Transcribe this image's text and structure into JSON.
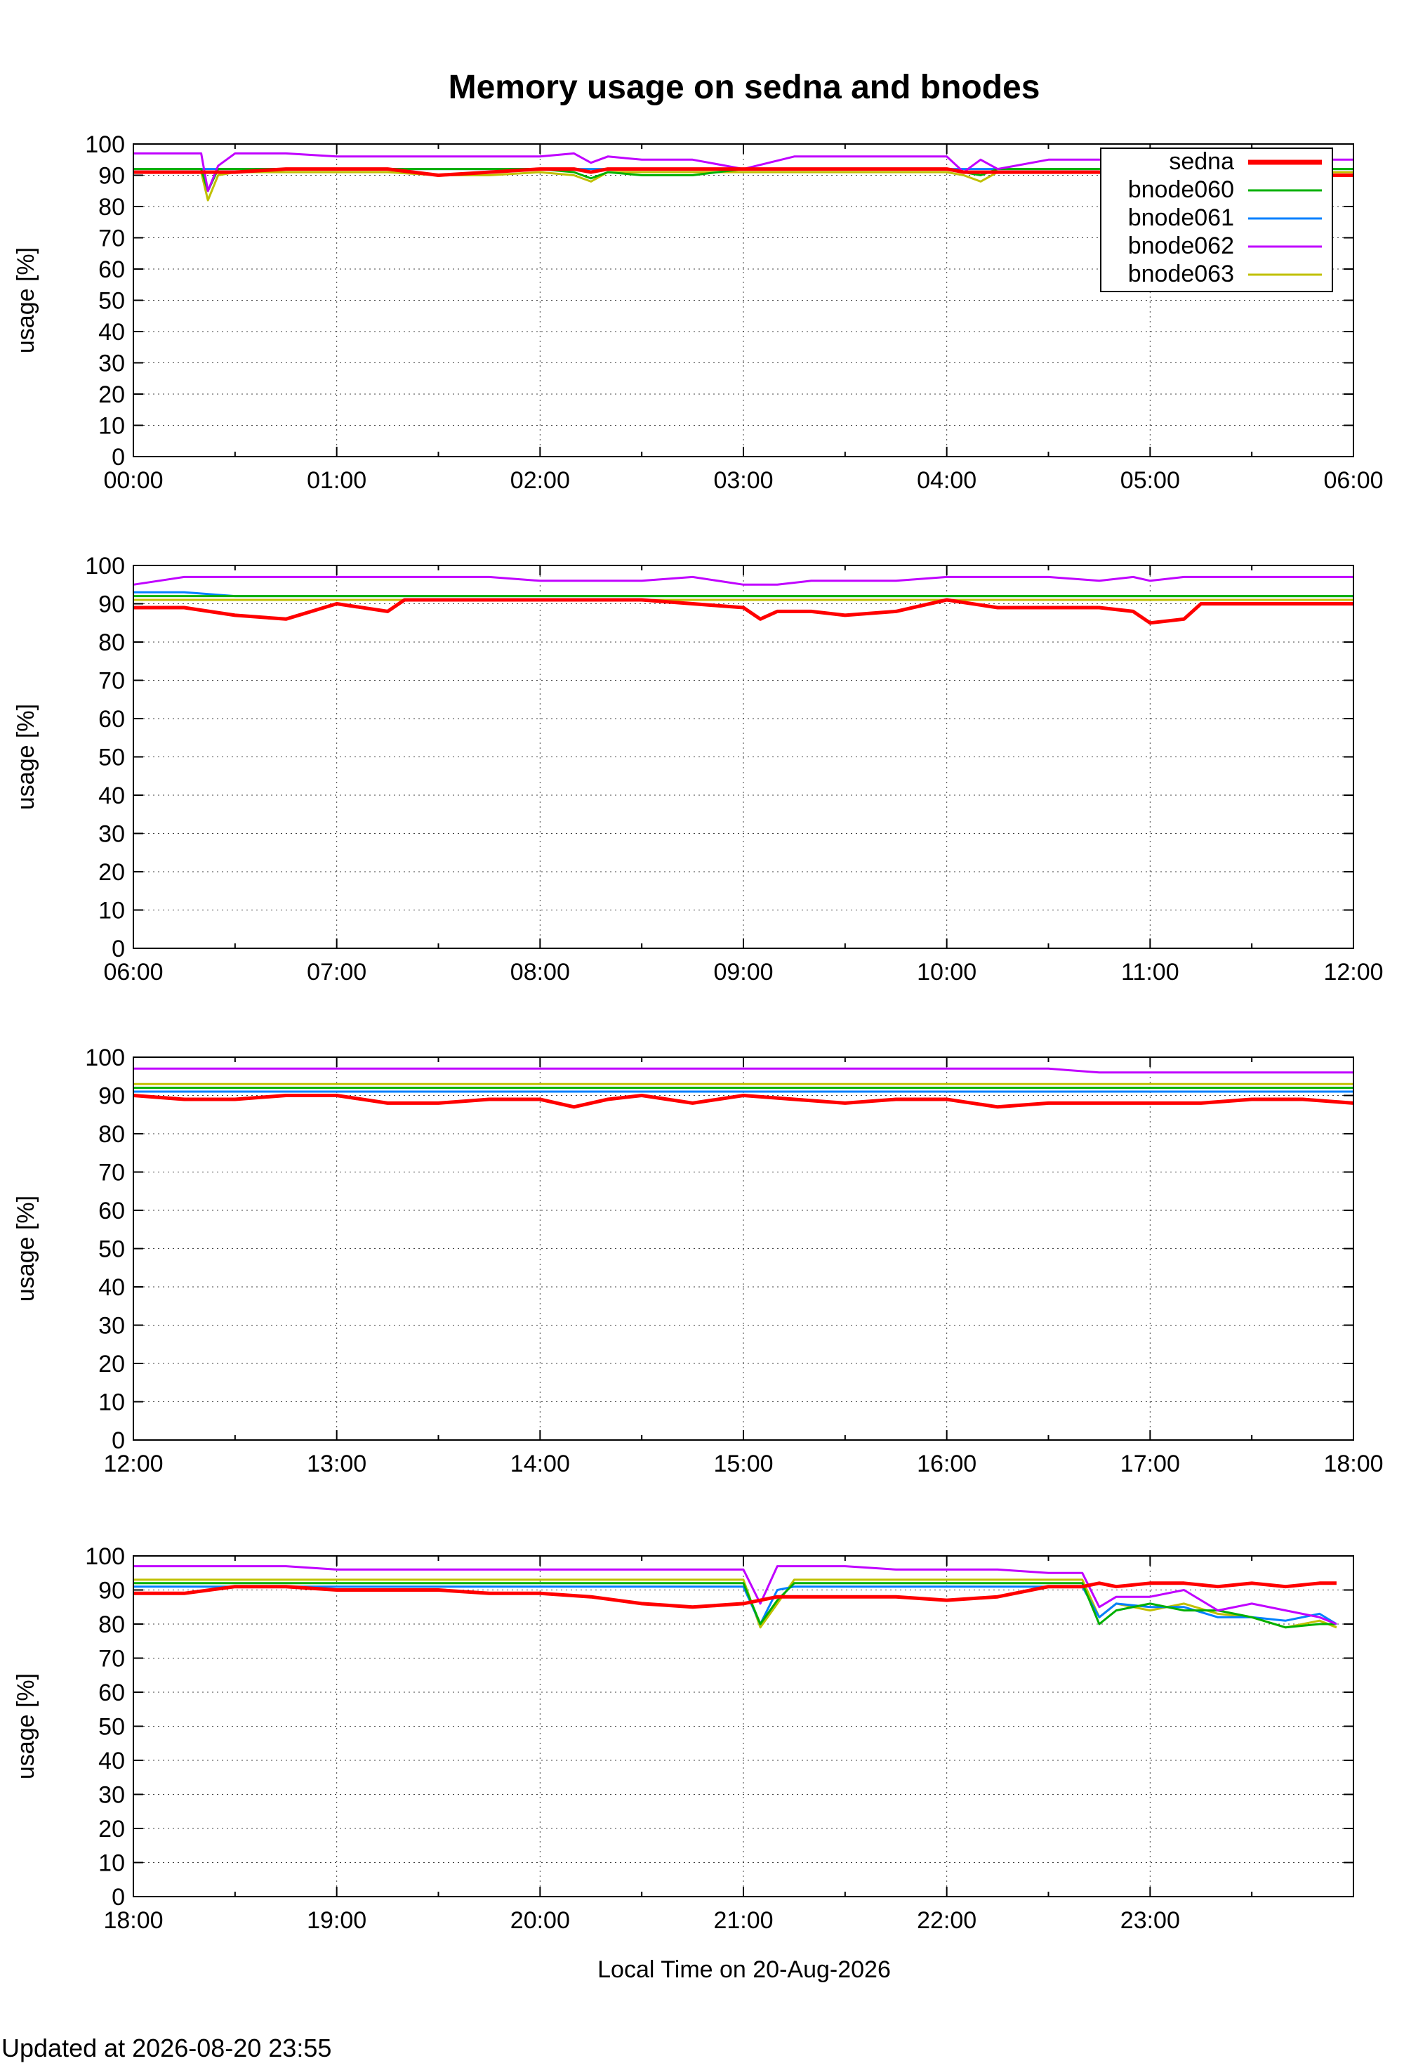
{
  "footer": {
    "updated": "Updated at 2026-08-20 23:55"
  },
  "chart_data": {
    "type": "line",
    "title": "Memory usage on sedna and bnodes",
    "xlabel": "Local Time on 20-Aug-2026",
    "ylabel": "usage [%]",
    "ylim": [
      0,
      100
    ],
    "yticks": [
      0,
      10,
      20,
      30,
      40,
      50,
      60,
      70,
      80,
      90,
      100
    ],
    "grid": true,
    "legend_position": "top-right",
    "series_styles": [
      {
        "name": "sedna",
        "color": "#ff0000"
      },
      {
        "name": "bnode060",
        "color": "#00b000"
      },
      {
        "name": "bnode061",
        "color": "#0080ff"
      },
      {
        "name": "bnode062",
        "color": "#c000ff"
      },
      {
        "name": "bnode063",
        "color": "#c0c000"
      }
    ],
    "panels": [
      {
        "xticks": [
          "00:00",
          "01:00",
          "02:00",
          "03:00",
          "04:00",
          "05:00",
          "06:00"
        ],
        "x": [
          "00:00",
          "00:15",
          "00:20",
          "00:22",
          "00:25",
          "00:30",
          "00:45",
          "01:00",
          "01:15",
          "01:30",
          "01:45",
          "02:00",
          "02:10",
          "02:15",
          "02:20",
          "02:30",
          "02:45",
          "03:00",
          "03:15",
          "03:30",
          "03:45",
          "04:00",
          "04:05",
          "04:10",
          "04:15",
          "04:30",
          "04:45",
          "05:00",
          "05:15",
          "05:30",
          "05:45",
          "06:00"
        ],
        "series": [
          {
            "name": "sedna",
            "values": [
              91,
              91,
              91,
              91,
              91,
              91,
              92,
              92,
              92,
              90,
              91,
              92,
              92,
              91,
              92,
              92,
              92,
              92,
              92,
              92,
              92,
              92,
              91,
              91,
              91,
              91,
              91,
              90,
              90,
              90,
              90,
              90
            ]
          },
          {
            "name": "bnode060",
            "values": [
              92,
              92,
              92,
              85,
              92,
              92,
              92,
              92,
              92,
              92,
              92,
              92,
              91,
              89,
              91,
              90,
              90,
              92,
              92,
              92,
              92,
              92,
              91,
              90,
              92,
              92,
              92,
              92,
              92,
              92,
              92,
              92
            ]
          },
          {
            "name": "bnode061",
            "values": [
              92,
              92,
              92,
              92,
              92,
              92,
              92,
              92,
              92,
              92,
              92,
              92,
              92,
              92,
              92,
              92,
              92,
              92,
              92,
              92,
              92,
              92,
              92,
              92,
              92,
              92,
              92,
              92,
              92,
              92,
              92,
              92
            ]
          },
          {
            "name": "bnode062",
            "values": [
              97,
              97,
              97,
              85,
              93,
              97,
              97,
              96,
              96,
              96,
              96,
              96,
              97,
              94,
              96,
              95,
              95,
              92,
              96,
              96,
              96,
              96,
              91,
              95,
              92,
              95,
              95,
              95,
              95,
              95,
              95,
              95
            ]
          },
          {
            "name": "bnode063",
            "values": [
              91,
              91,
              91,
              82,
              90,
              91,
              91,
              91,
              91,
              90,
              90,
              91,
              90,
              88,
              91,
              91,
              91,
              91,
              91,
              91,
              91,
              91,
              90,
              88,
              91,
              91,
              91,
              91,
              91,
              91,
              91,
              91
            ]
          }
        ]
      },
      {
        "xticks": [
          "06:00",
          "07:00",
          "08:00",
          "09:00",
          "10:00",
          "11:00",
          "12:00"
        ],
        "x": [
          "06:00",
          "06:15",
          "06:30",
          "06:45",
          "07:00",
          "07:15",
          "07:20",
          "07:45",
          "08:00",
          "08:30",
          "08:45",
          "09:00",
          "09:05",
          "09:10",
          "09:20",
          "09:30",
          "09:45",
          "10:00",
          "10:15",
          "10:30",
          "10:45",
          "10:55",
          "11:00",
          "11:10",
          "11:15",
          "11:30",
          "11:45",
          "12:00"
        ],
        "series": [
          {
            "name": "sedna",
            "values": [
              89,
              89,
              87,
              86,
              90,
              88,
              91,
              91,
              91,
              91,
              90,
              89,
              86,
              88,
              88,
              87,
              88,
              91,
              89,
              89,
              89,
              88,
              85,
              86,
              90,
              90,
              90,
              90
            ]
          },
          {
            "name": "bnode060",
            "values": [
              92,
              92,
              92,
              92,
              92,
              92,
              92,
              92,
              92,
              92,
              92,
              92,
              92,
              92,
              92,
              92,
              92,
              92,
              92,
              92,
              92,
              92,
              92,
              92,
              92,
              92,
              92,
              92
            ]
          },
          {
            "name": "bnode061",
            "values": [
              93,
              93,
              92,
              92,
              92,
              92,
              92,
              92,
              92,
              92,
              92,
              92,
              92,
              92,
              92,
              92,
              92,
              92,
              92,
              92,
              92,
              92,
              92,
              92,
              92,
              92,
              92,
              92
            ]
          },
          {
            "name": "bnode062",
            "values": [
              95,
              97,
              97,
              97,
              97,
              97,
              97,
              97,
              96,
              96,
              97,
              95,
              95,
              95,
              96,
              96,
              96,
              97,
              97,
              97,
              96,
              97,
              96,
              97,
              97,
              97,
              97,
              97
            ]
          },
          {
            "name": "bnode063",
            "values": [
              91,
              91,
              91,
              91,
              91,
              91,
              91,
              91,
              91,
              91,
              91,
              91,
              91,
              91,
              91,
              91,
              91,
              91,
              91,
              91,
              91,
              91,
              91,
              91,
              91,
              91,
              91,
              91
            ]
          }
        ]
      },
      {
        "xticks": [
          "12:00",
          "13:00",
          "14:00",
          "15:00",
          "16:00",
          "17:00",
          "18:00"
        ],
        "x": [
          "12:00",
          "12:15",
          "12:30",
          "12:45",
          "13:00",
          "13:15",
          "13:30",
          "13:45",
          "14:00",
          "14:10",
          "14:20",
          "14:30",
          "14:45",
          "15:00",
          "15:15",
          "15:30",
          "15:45",
          "16:00",
          "16:15",
          "16:30",
          "16:45",
          "17:00",
          "17:15",
          "17:30",
          "17:45",
          "18:00"
        ],
        "series": [
          {
            "name": "sedna",
            "values": [
              90,
              89,
              89,
              90,
              90,
              88,
              88,
              89,
              89,
              87,
              89,
              90,
              88,
              90,
              89,
              88,
              89,
              89,
              87,
              88,
              88,
              88,
              88,
              89,
              89,
              88
            ]
          },
          {
            "name": "bnode060",
            "values": [
              92,
              92,
              92,
              92,
              92,
              92,
              92,
              92,
              92,
              92,
              92,
              92,
              92,
              92,
              92,
              92,
              92,
              92,
              92,
              92,
              92,
              92,
              92,
              92,
              92,
              92
            ]
          },
          {
            "name": "bnode061",
            "values": [
              91,
              91,
              91,
              91,
              91,
              91,
              91,
              91,
              91,
              91,
              91,
              91,
              91,
              91,
              91,
              91,
              91,
              91,
              91,
              91,
              91,
              91,
              91,
              91,
              91,
              91
            ]
          },
          {
            "name": "bnode062",
            "values": [
              97,
              97,
              97,
              97,
              97,
              97,
              97,
              97,
              97,
              97,
              97,
              97,
              97,
              97,
              97,
              97,
              97,
              97,
              97,
              97,
              96,
              96,
              96,
              96,
              96,
              96
            ]
          },
          {
            "name": "bnode063",
            "values": [
              93,
              93,
              93,
              93,
              93,
              93,
              93,
              93,
              93,
              93,
              93,
              93,
              93,
              93,
              93,
              93,
              93,
              93,
              93,
              93,
              93,
              93,
              93,
              93,
              93,
              93
            ]
          }
        ]
      },
      {
        "xticks": [
          "18:00",
          "19:00",
          "20:00",
          "21:00",
          "22:00",
          "23:00"
        ],
        "x": [
          "18:00",
          "18:15",
          "18:30",
          "18:45",
          "19:00",
          "19:15",
          "19:30",
          "19:45",
          "20:00",
          "20:15",
          "20:30",
          "20:45",
          "21:00",
          "21:05",
          "21:10",
          "21:15",
          "21:30",
          "21:45",
          "22:00",
          "22:15",
          "22:30",
          "22:40",
          "22:45",
          "22:50",
          "23:00",
          "23:10",
          "23:20",
          "23:30",
          "23:40",
          "23:50",
          "23:55"
        ],
        "series": [
          {
            "name": "sedna",
            "values": [
              89,
              89,
              91,
              91,
              90,
              90,
              90,
              89,
              89,
              88,
              86,
              85,
              86,
              87,
              88,
              88,
              88,
              88,
              87,
              88,
              91,
              91,
              92,
              91,
              92,
              92,
              91,
              92,
              91,
              92,
              92
            ]
          },
          {
            "name": "bnode060",
            "values": [
              92,
              92,
              92,
              92,
              92,
              92,
              92,
              92,
              92,
              92,
              92,
              92,
              92,
              80,
              87,
              92,
              92,
              92,
              92,
              92,
              92,
              92,
              80,
              84,
              86,
              84,
              84,
              82,
              79,
              80,
              80
            ]
          },
          {
            "name": "bnode061",
            "values": [
              91,
              91,
              91,
              91,
              91,
              91,
              91,
              91,
              91,
              91,
              91,
              91,
              91,
              80,
              90,
              91,
              91,
              91,
              91,
              91,
              91,
              91,
              82,
              86,
              85,
              85,
              82,
              82,
              81,
              83,
              80
            ]
          },
          {
            "name": "bnode062",
            "values": [
              97,
              97,
              97,
              97,
              96,
              96,
              96,
              96,
              96,
              96,
              96,
              96,
              96,
              86,
              97,
              97,
              97,
              96,
              96,
              96,
              95,
              95,
              85,
              88,
              88,
              90,
              84,
              86,
              84,
              82,
              80
            ]
          },
          {
            "name": "bnode063",
            "values": [
              93,
              93,
              93,
              93,
              93,
              93,
              93,
              93,
              93,
              93,
              93,
              93,
              93,
              79,
              86,
              93,
              93,
              93,
              93,
              93,
              93,
              93,
              82,
              86,
              84,
              86,
              83,
              82,
              79,
              81,
              79
            ]
          }
        ]
      }
    ]
  }
}
